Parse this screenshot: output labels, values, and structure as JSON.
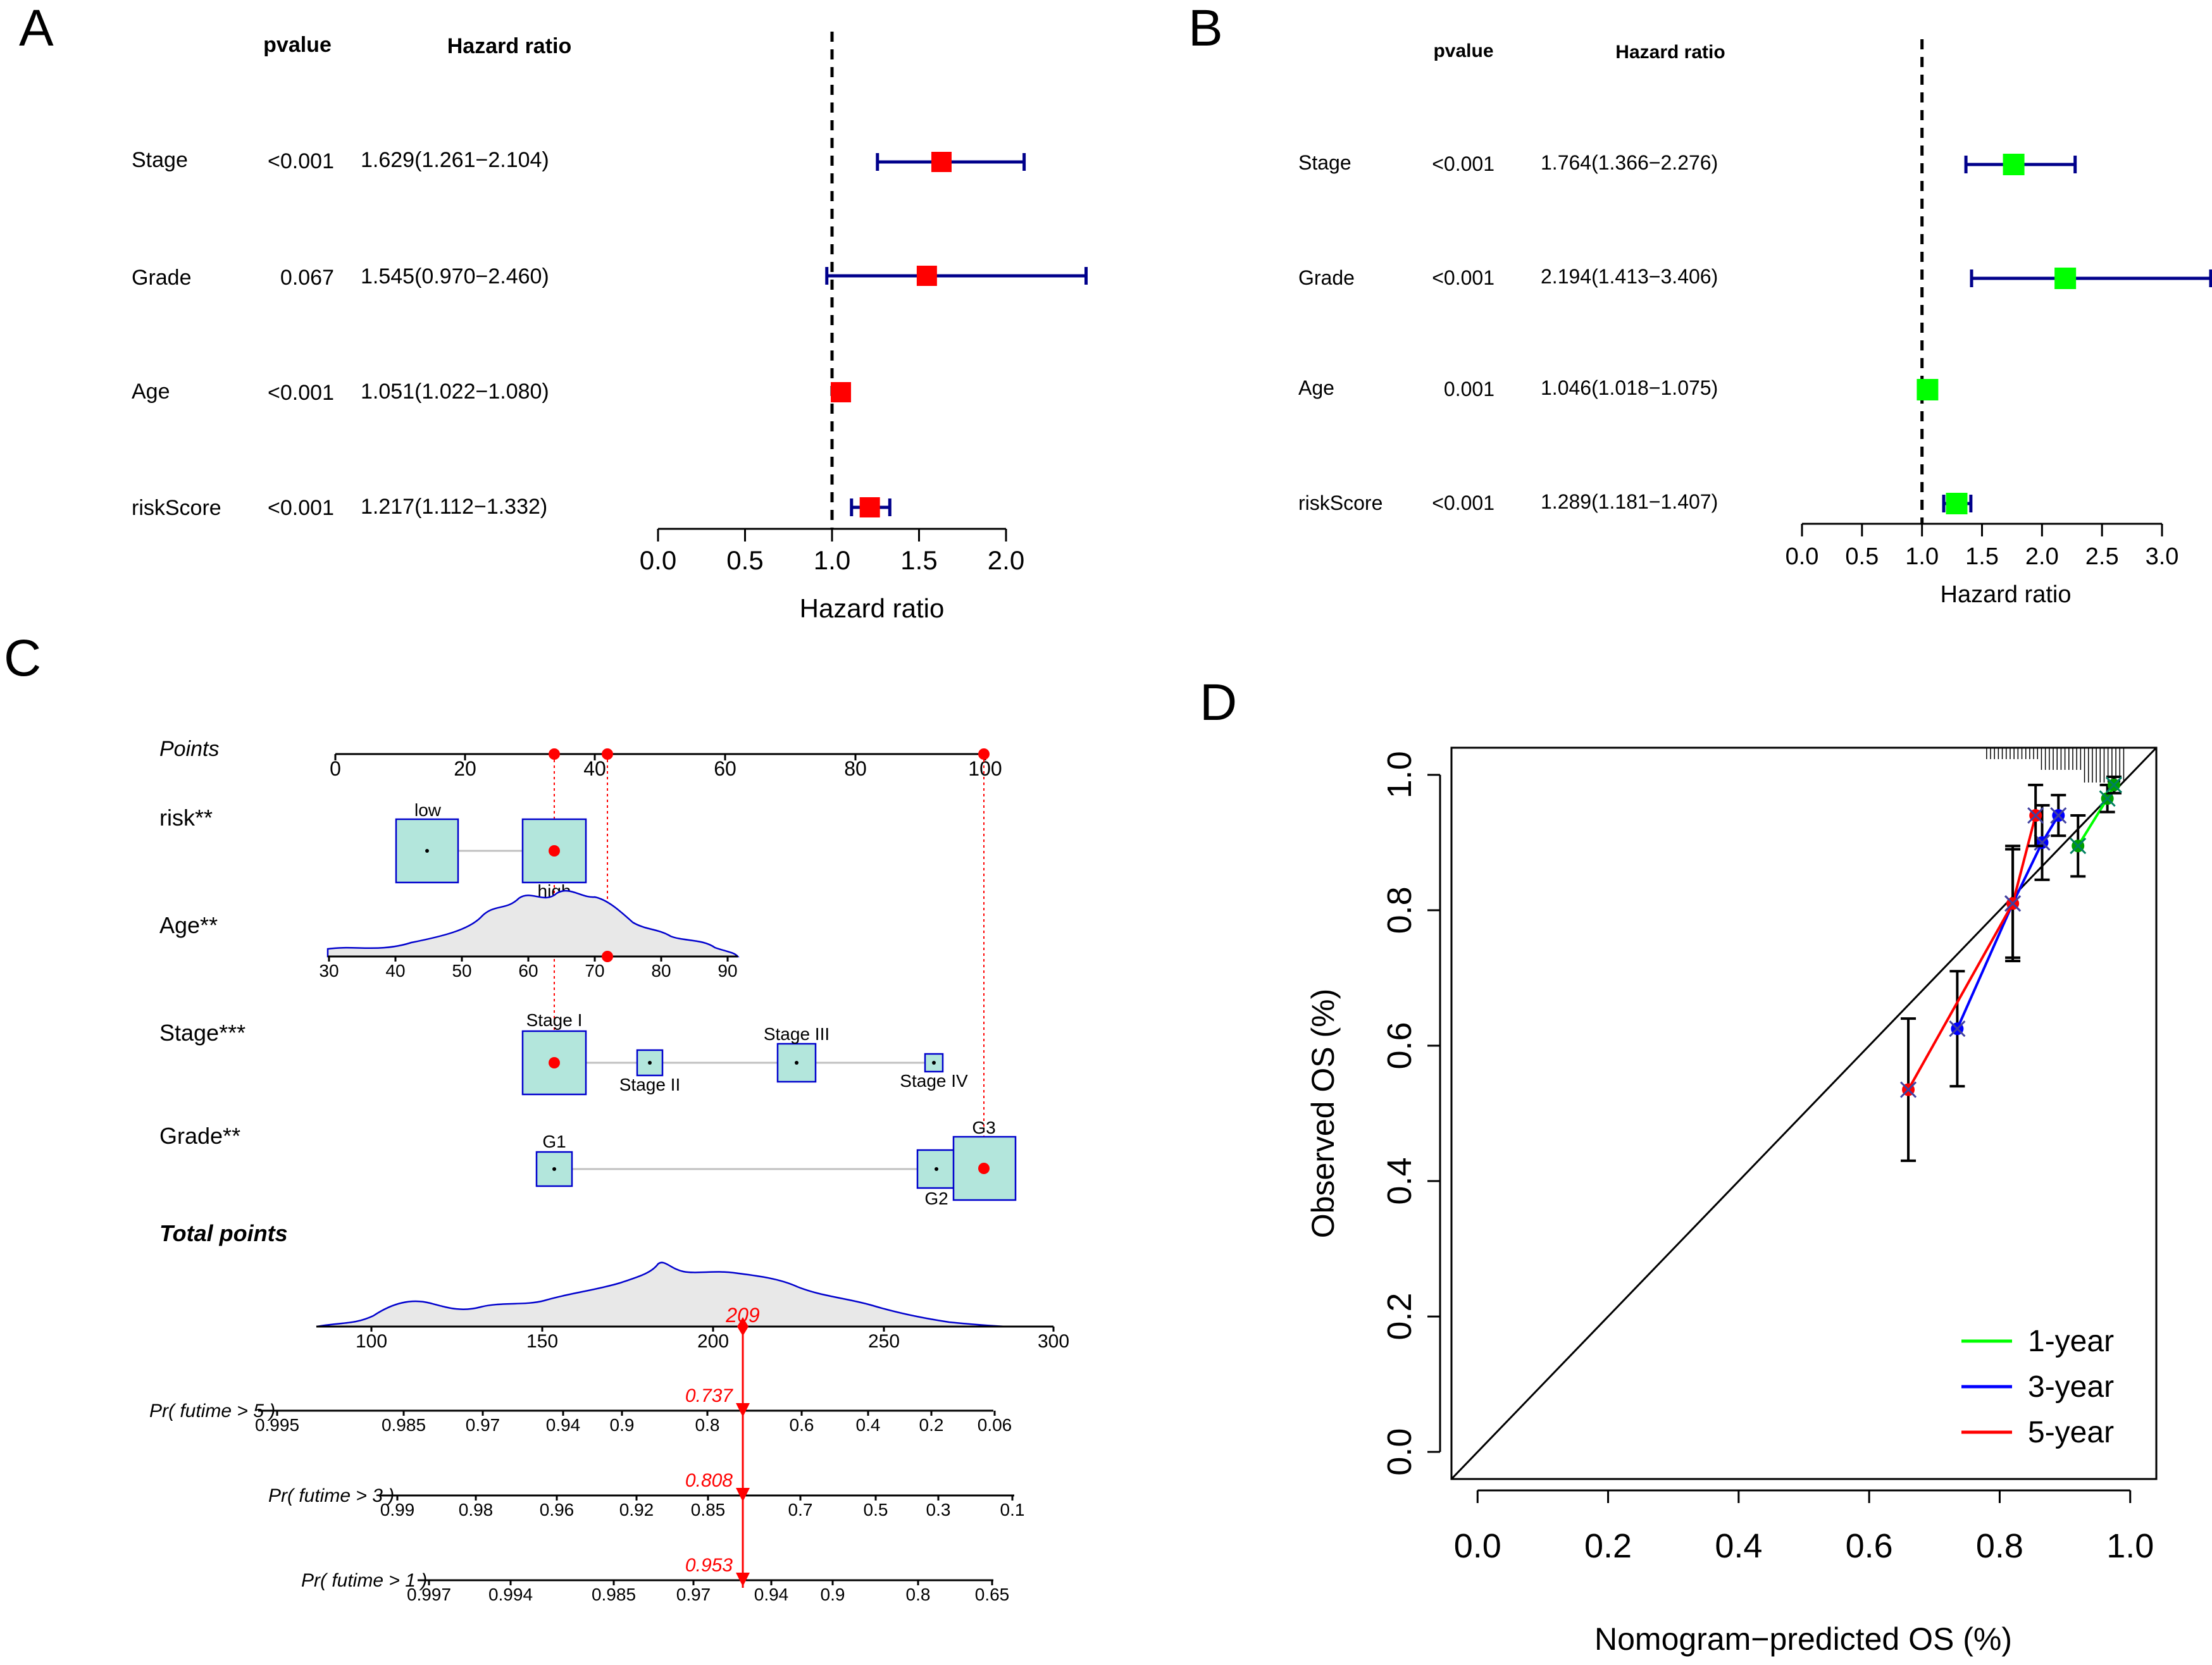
{
  "panel_labels": {
    "a": "A",
    "b": "B",
    "c": "C",
    "d": "D"
  },
  "forest": {
    "col_pvalue": "pvalue",
    "col_hr": "Hazard ratio",
    "xlabel": "Hazard ratio",
    "ref_line": 1.0
  },
  "chart_data": [
    {
      "panel": "A",
      "type": "forest",
      "title": "",
      "xlabel": "Hazard ratio",
      "xlim": [
        0.0,
        2.0
      ],
      "ticks": [
        0.0,
        0.5,
        1.0,
        1.5,
        2.0
      ],
      "tick_labels": [
        "0.0",
        "0.5",
        "1.0",
        "1.5",
        "2.0"
      ],
      "marker_color": "#ff0000",
      "ci_color": "#00008b",
      "rows": [
        {
          "label": "Stage",
          "p": "<0.001",
          "hr_text": "1.629(1.261−2.104)",
          "hr": 1.629,
          "lo": 1.261,
          "hi": 2.104
        },
        {
          "label": "Grade",
          "p": "0.067",
          "hr_text": "1.545(0.970−2.460)",
          "hr": 1.545,
          "lo": 0.97,
          "hi": 2.46
        },
        {
          "label": "Age",
          "p": "<0.001",
          "hr_text": "1.051(1.022−1.080)",
          "hr": 1.051,
          "lo": 1.022,
          "hi": 1.08
        },
        {
          "label": "riskScore",
          "p": "<0.001",
          "hr_text": "1.217(1.112−1.332)",
          "hr": 1.217,
          "lo": 1.112,
          "hi": 1.332
        }
      ]
    },
    {
      "panel": "B",
      "type": "forest",
      "title": "",
      "xlabel": "Hazard ratio",
      "xlim": [
        0.0,
        3.0
      ],
      "ticks": [
        0.0,
        0.5,
        1.0,
        1.5,
        2.0,
        2.5,
        3.0
      ],
      "tick_labels": [
        "0.0",
        "0.5",
        "1.0",
        "1.5",
        "2.0",
        "2.5",
        "3.0"
      ],
      "marker_color": "#00ff00",
      "ci_color": "#00008b",
      "rows": [
        {
          "label": "Stage",
          "p": "<0.001",
          "hr_text": "1.764(1.366−2.276)",
          "hr": 1.764,
          "lo": 1.366,
          "hi": 2.276
        },
        {
          "label": "Grade",
          "p": "<0.001",
          "hr_text": "2.194(1.413−3.406)",
          "hr": 2.194,
          "lo": 1.413,
          "hi": 3.406
        },
        {
          "label": "Age",
          "p": "0.001",
          "hr_text": "1.046(1.018−1.075)",
          "hr": 1.046,
          "lo": 1.018,
          "hi": 1.075
        },
        {
          "label": "riskScore",
          "p": "<0.001",
          "hr_text": "1.289(1.181−1.407)",
          "hr": 1.289,
          "lo": 1.181,
          "hi": 1.407
        }
      ]
    },
    {
      "panel": "C",
      "type": "nomogram",
      "points_label": "Points",
      "points_ticks": [
        0,
        20,
        40,
        60,
        80,
        100
      ],
      "vars": [
        {
          "label": "risk**",
          "categories": [
            "low",
            "high"
          ],
          "points": [
            14,
            34
          ],
          "selected": 1
        },
        {
          "label": "Age**",
          "ticks": [
            30,
            40,
            50,
            60,
            70,
            80,
            90
          ],
          "selected_value": 72
        },
        {
          "label": "Stage***",
          "categories": [
            "Stage I",
            "Stage II",
            "Stage III",
            "Stage IV"
          ],
          "points": [
            34,
            48,
            71,
            92
          ],
          "selected": 0
        },
        {
          "label": "Grade**",
          "categories": [
            "G1",
            "G2",
            "G3"
          ],
          "points": [
            34,
            92,
            100
          ],
          "selected": 2
        }
      ],
      "total_label": "Total points",
      "total_ticks": [
        100,
        150,
        200,
        250,
        300
      ],
      "total_value": "209",
      "survival": [
        {
          "label": "Pr( futime > 5 )",
          "ticks": [
            "0.995",
            "0.985",
            "0.97",
            "0.94",
            "0.9",
            "0.8",
            "0.6",
            "0.4",
            "0.2",
            "0.06"
          ],
          "value": "0.737"
        },
        {
          "label": "Pr( futime > 3 )",
          "ticks": [
            "0.99",
            "0.98",
            "0.96",
            "0.92",
            "0.85",
            "0.7",
            "0.5",
            "0.3",
            "0.1"
          ],
          "value": "0.808"
        },
        {
          "label": "Pr( futime > 1 )",
          "ticks": [
            "0.997",
            "0.994",
            "0.985",
            "0.97",
            "0.94",
            "0.9",
            "0.8",
            "0.65"
          ],
          "value": "0.953"
        }
      ],
      "colors": {
        "box_fill": "#b3e6dc",
        "box_stroke": "#0000cd",
        "density_fill": "#e8e8e8",
        "density_line": "#0000cd",
        "highlight": "#ff0000"
      }
    },
    {
      "panel": "D",
      "type": "line",
      "title": "",
      "xlabel": "Nomogram−predicted OS (%)",
      "ylabel": "Observed OS (%)",
      "xlim": [
        -0.04,
        1.04
      ],
      "ylim": [
        -0.04,
        1.04
      ],
      "xticks": [
        0.0,
        0.2,
        0.4,
        0.6,
        0.8,
        1.0
      ],
      "xtick_labels": [
        "0.0",
        "0.2",
        "0.4",
        "0.6",
        "0.8",
        "1.0"
      ],
      "yticks": [
        0.0,
        0.2,
        0.4,
        0.6,
        0.8,
        1.0
      ],
      "ytick_labels": [
        "0.0",
        "0.2",
        "0.4",
        "0.6",
        "0.8",
        "1.0"
      ],
      "legend_position": "bottom-right",
      "series": [
        {
          "name": "1-year",
          "color": "#00ff00",
          "marker_color": "#00a000",
          "x": [
            0.92,
            0.965,
            0.975
          ],
          "y": [
            0.895,
            0.965,
            0.985
          ],
          "err": [
            0.045,
            0.02,
            0.012
          ]
        },
        {
          "name": "3-year",
          "color": "#0000ff",
          "marker_color": "#0000ff",
          "x": [
            0.735,
            0.82,
            0.865,
            0.89
          ],
          "y": [
            0.625,
            0.81,
            0.9,
            0.94
          ],
          "err": [
            0.085,
            0.08,
            0.055,
            0.03
          ]
        },
        {
          "name": "5-year",
          "color": "#ff0000",
          "marker_color": "#ff0000",
          "x": [
            0.66,
            0.82,
            0.855
          ],
          "y": [
            0.535,
            0.81,
            0.94
          ],
          "err": [
            0.105,
            0.085,
            0.045
          ]
        }
      ]
    }
  ]
}
